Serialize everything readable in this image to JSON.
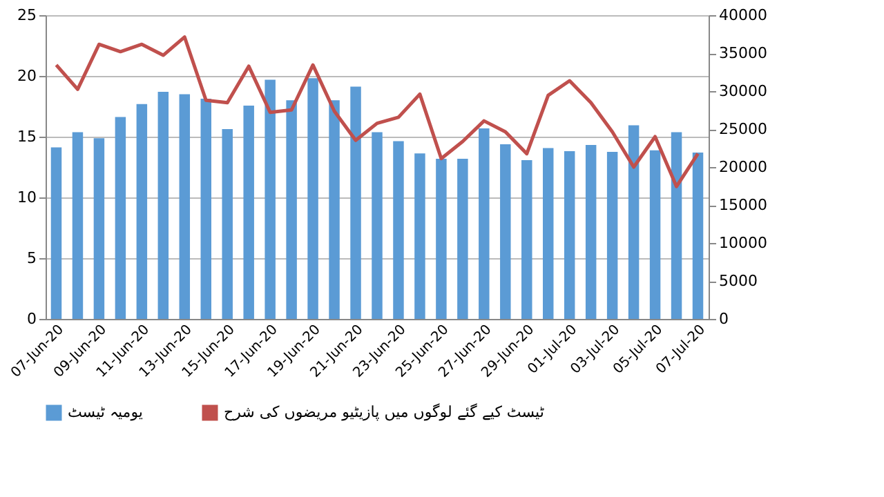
{
  "chart_data": {
    "type": "bar",
    "categories": [
      "07-Jun-20",
      null,
      "09-Jun-20",
      null,
      "11-Jun-20",
      null,
      "13-Jun-20",
      null,
      "15-Jun-20",
      null,
      "17-Jun-20",
      null,
      "19-Jun-20",
      null,
      "21-Jun-20",
      null,
      "23-Jun-20",
      null,
      "25-Jun-20",
      null,
      "27-Jun-20",
      null,
      "29-Jun-20",
      null,
      "01-Jul-20",
      null,
      "03-Jul-20",
      null,
      "05-Jul-20",
      null,
      "07-Jul-20"
    ],
    "series": [
      {
        "name": "یومیہ ٹیسٹ",
        "axis": "y2",
        "color": "#5b9bd5",
        "values": [
          22600,
          24600,
          23800,
          26600,
          28300,
          29900,
          29600,
          29000,
          25000,
          28100,
          31500,
          28800,
          31700,
          28800,
          30600,
          24600,
          23400,
          21800,
          21100,
          21100,
          25100,
          23000,
          20900,
          22500,
          22100,
          22900,
          22000,
          25500,
          22200,
          24600,
          21900
        ]
      },
      {
        "name": "ٹیسٹ کیے گئے لوگوں میں پازیٹیو مریضوں کی شرح",
        "type": "line",
        "color": "#c0504d",
        "values": [
          20.9,
          18.9,
          22.6,
          22.0,
          22.6,
          21.7,
          23.2,
          18.0,
          17.8,
          20.8,
          17.0,
          17.2,
          20.9,
          17.1,
          14.7,
          16.1,
          16.6,
          18.5,
          13.2,
          14.6,
          16.3,
          15.4,
          13.6,
          18.4,
          19.6,
          17.8,
          15.4,
          12.5,
          15.0,
          10.9,
          13.6
        ]
      }
    ],
    "ylim": [
      0,
      25
    ],
    "yticks": [
      0,
      5,
      10,
      15,
      20,
      25
    ],
    "y2lim": [
      0,
      40000
    ],
    "y2ticks": [
      0,
      5000,
      10000,
      15000,
      20000,
      25000,
      30000,
      35000,
      40000
    ],
    "grid": "y",
    "legend": "bottom",
    "marker": "none",
    "line_style": "solid"
  }
}
